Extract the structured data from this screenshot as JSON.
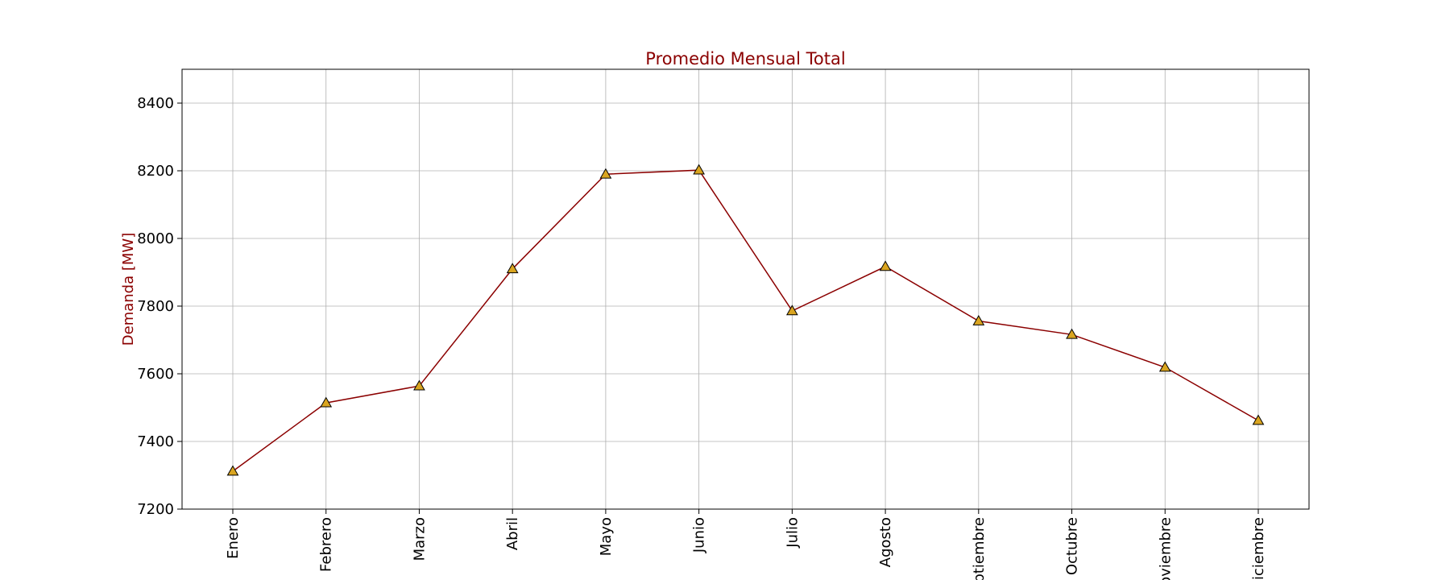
{
  "chart_data": {
    "type": "line",
    "title": "Promedio Mensual Total",
    "xlabel": "",
    "ylabel": "Demanda [MW]",
    "categories": [
      "Enero",
      "Febrero",
      "Marzo",
      "Abril",
      "Mayo",
      "Junio",
      "Julio",
      "Agosto",
      "Septiembre",
      "Octubre",
      "Noviembre",
      "Diciembre"
    ],
    "series": [
      {
        "values": [
          7312,
          7514,
          7564,
          7910,
          8190,
          8202,
          7786,
          7917,
          7756,
          7716,
          7619,
          7462
        ]
      }
    ],
    "ylim": [
      7200,
      8500
    ],
    "yticks": [
      7200,
      7400,
      7600,
      7800,
      8000,
      8200,
      8400
    ],
    "grid": true,
    "marker": "triangle",
    "colors": {
      "line": "#8b0000",
      "marker_fill": "#daa520",
      "marker_edge": "#000000",
      "title": "#8b0000",
      "ylabel": "#8b0000",
      "grid": "#b0b0b0"
    }
  }
}
